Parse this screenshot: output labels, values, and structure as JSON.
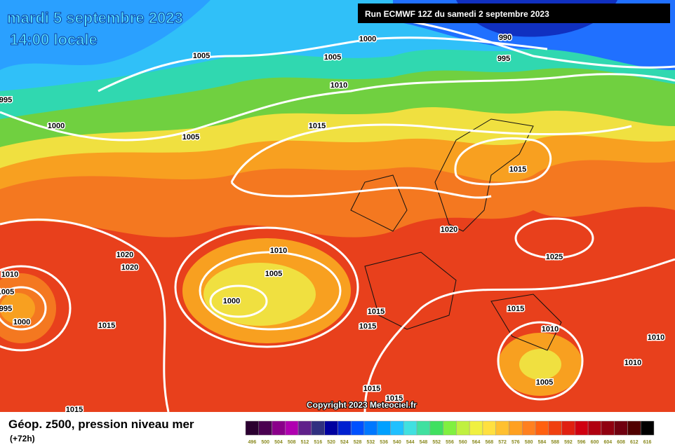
{
  "header": {
    "date": "mardi 5 septembre 2023",
    "time": "14:00 locale",
    "run": "Run ECMWF 12Z du samedi 2 septembre 2023"
  },
  "isobar_labels": [
    "1005",
    "1005",
    "1000",
    "990",
    "995",
    "1010",
    "995",
    "1000",
    "1005",
    "1015",
    "1015",
    "1020",
    "1010",
    "1005",
    "1000",
    "1020",
    "1020",
    "1010",
    "1005",
    "995",
    "1000",
    "1015",
    "1025",
    "1015",
    "1015",
    "1015",
    "1010",
    "1010",
    "1010",
    "1005",
    "1015",
    "1015",
    "1015"
  ],
  "copyright": "Copyright 2023 Meteociel.fr",
  "legend": {
    "title": "Géop. z500, pression niveau mer",
    "lead": "(+72h)",
    "scale": [
      496,
      500,
      504,
      508,
      512,
      516,
      520,
      524,
      528,
      532,
      536,
      540,
      544,
      548,
      552,
      556,
      560,
      564,
      568,
      572,
      576,
      580,
      584,
      588,
      592,
      596,
      600,
      604,
      608,
      612,
      616
    ],
    "colors": [
      "#2b0030",
      "#4a0050",
      "#8a008a",
      "#b000b0",
      "#60208a",
      "#303080",
      "#0000a0",
      "#0020d0",
      "#0050ff",
      "#0078ff",
      "#00a0ff",
      "#20c0ff",
      "#40e0e0",
      "#40e0a0",
      "#40e060",
      "#80f040",
      "#c0f040",
      "#f0f040",
      "#ffe040",
      "#ffc030",
      "#ffa020",
      "#ff8020",
      "#ff6010",
      "#f04010",
      "#e02010",
      "#d00010",
      "#b00010",
      "#900010",
      "#700010",
      "#500000",
      "#000000"
    ]
  }
}
